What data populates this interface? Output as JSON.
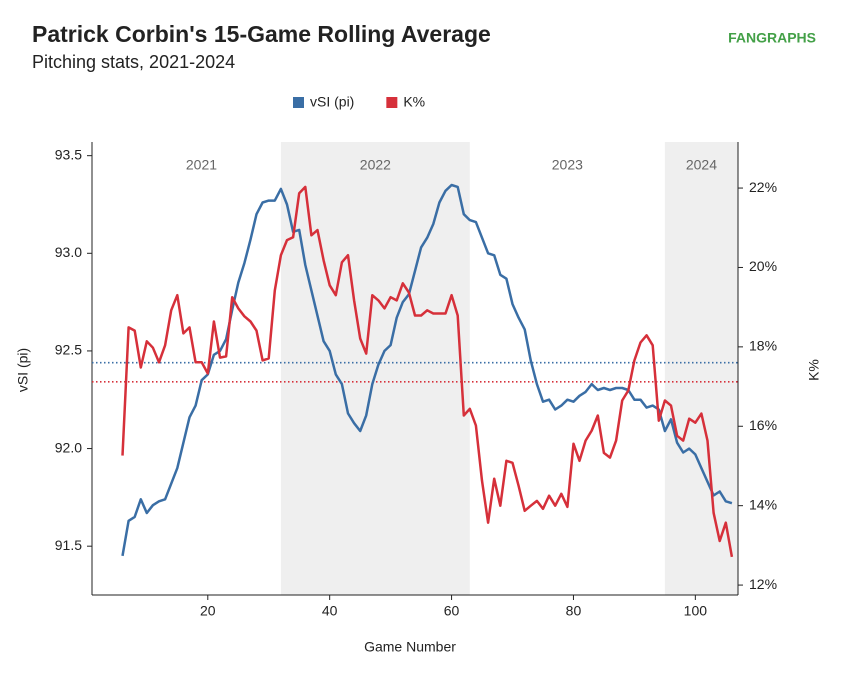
{
  "chart_data": {
    "type": "line",
    "title": "Patrick Corbin's 15-Game Rolling Average",
    "subtitle": "Pitching stats, 2021-2024",
    "logo": "FANGRAPHS",
    "x_label": "Game Number",
    "y_label": "vSI (pi)",
    "y2_label": "K%",
    "xlim": [
      1,
      107
    ],
    "xticks": [
      20,
      40,
      60,
      80,
      100
    ],
    "ylim": [
      91.25,
      93.57
    ],
    "yticks": [
      93.5,
      {
        "value": 93,
        "label": "93.0"
      },
      92.5,
      {
        "value": 92,
        "label": "92.0"
      },
      91.5
    ],
    "y2lim": [
      11.75,
      23.16
    ],
    "y2ticks": [
      {
        "value": 22,
        "label": "22%"
      },
      {
        "value": 20,
        "label": "20%"
      },
      {
        "value": 18,
        "label": "18%"
      },
      {
        "value": 16,
        "label": "16%"
      },
      {
        "value": 14,
        "label": "14%"
      },
      {
        "value": 12,
        "label": "12%"
      }
    ],
    "seasons": [
      {
        "label": "2021",
        "start": 1,
        "end": 32,
        "shaded": false
      },
      {
        "label": "2022",
        "start": 32,
        "end": 63,
        "shaded": true
      },
      {
        "label": "2023",
        "start": 63,
        "end": 95,
        "shaded": false
      },
      {
        "label": "2024",
        "start": 95,
        "end": 107,
        "shaded": true
      }
    ],
    "reference_lines": [
      {
        "axis": "y",
        "value": 92.44,
        "color": "#3a6ea5"
      },
      {
        "axis": "y2",
        "value": 17.12,
        "color": "#d6303a"
      }
    ],
    "x": [
      6,
      7,
      8,
      9,
      10,
      11,
      12,
      13,
      14,
      15,
      16,
      17,
      18,
      19,
      20,
      21,
      22,
      23,
      24,
      25,
      26,
      27,
      28,
      29,
      30,
      31,
      32,
      33,
      34,
      35,
      36,
      37,
      38,
      39,
      40,
      41,
      42,
      43,
      44,
      45,
      46,
      47,
      48,
      49,
      50,
      51,
      52,
      53,
      54,
      55,
      56,
      57,
      58,
      59,
      60,
      61,
      62,
      63,
      64,
      65,
      66,
      67,
      68,
      69,
      70,
      71,
      72,
      73,
      74,
      75,
      76,
      77,
      78,
      79,
      80,
      81,
      82,
      83,
      84,
      85,
      86,
      87,
      88,
      89,
      90,
      91,
      92,
      93,
      94,
      95,
      96,
      97,
      98,
      99,
      100,
      101,
      102,
      103,
      104,
      105,
      106
    ],
    "series": [
      {
        "name": "vSI (pi)",
        "color": "#3a6ea5",
        "axis": "y",
        "values": [
          91.45,
          91.63,
          91.65,
          91.74,
          91.67,
          91.71,
          91.73,
          91.74,
          91.82,
          91.9,
          92.03,
          92.16,
          92.22,
          92.35,
          92.38,
          92.48,
          92.5,
          92.56,
          92.71,
          92.85,
          92.95,
          93.07,
          93.2,
          93.26,
          93.27,
          93.27,
          93.33,
          93.25,
          93.11,
          93.12,
          92.94,
          92.81,
          92.68,
          92.55,
          92.5,
          92.38,
          92.33,
          92.18,
          92.13,
          92.09,
          92.17,
          92.33,
          92.43,
          92.5,
          92.53,
          92.67,
          92.75,
          92.79,
          92.91,
          93.03,
          93.08,
          93.15,
          93.26,
          93.32,
          93.35,
          93.34,
          93.2,
          93.17,
          93.16,
          93.08,
          93.0,
          92.99,
          92.89,
          92.87,
          92.74,
          92.67,
          92.61,
          92.45,
          92.33,
          92.24,
          92.25,
          92.2,
          92.22,
          92.25,
          92.24,
          92.27,
          92.29,
          92.33,
          92.3,
          92.31,
          92.3,
          92.31,
          92.31,
          92.3,
          92.25,
          92.25,
          92.21,
          92.22,
          92.2,
          92.09,
          92.15,
          92.03,
          91.98,
          92.0,
          91.97,
          91.9,
          91.83,
          91.76,
          91.78,
          91.73,
          91.72
        ]
      },
      {
        "name": "K%",
        "color": "#d6303a",
        "axis": "y2",
        "values": [
          15.26,
          18.49,
          18.41,
          17.48,
          18.14,
          17.98,
          17.61,
          18.04,
          18.92,
          19.3,
          18.34,
          18.49,
          17.61,
          17.61,
          17.33,
          18.64,
          17.73,
          17.76,
          19.25,
          18.97,
          18.77,
          18.64,
          18.41,
          17.66,
          17.71,
          19.42,
          20.31,
          20.69,
          20.76,
          21.87,
          22.03,
          20.81,
          20.94,
          20.18,
          19.55,
          19.3,
          20.13,
          20.31,
          19.17,
          18.21,
          17.83,
          19.3,
          19.17,
          18.97,
          19.25,
          19.17,
          19.6,
          19.37,
          18.79,
          18.79,
          18.92,
          18.84,
          18.84,
          18.84,
          19.3,
          18.79,
          16.27,
          16.44,
          16.02,
          14.63,
          13.57,
          14.68,
          14.0,
          15.13,
          15.08,
          14.5,
          13.87,
          14.0,
          14.12,
          13.92,
          14.25,
          14.0,
          14.3,
          13.97,
          15.56,
          15.13,
          15.64,
          15.89,
          16.27,
          15.33,
          15.21,
          15.64,
          16.65,
          16.9,
          17.66,
          18.11,
          18.29,
          18.04,
          16.14,
          16.65,
          16.52,
          15.76,
          15.64,
          16.19,
          16.09,
          16.32,
          15.64,
          13.82,
          13.11,
          13.57,
          12.71
        ]
      }
    ]
  }
}
